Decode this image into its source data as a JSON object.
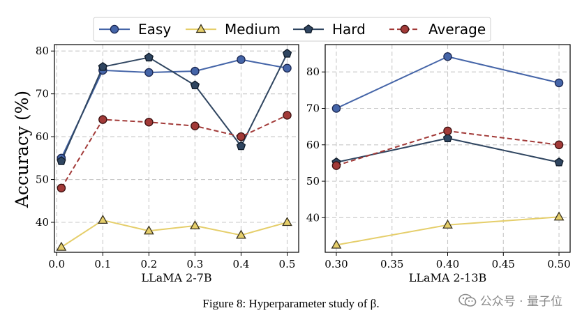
{
  "legend": {
    "items": [
      {
        "label": "Easy",
        "color": "#4565a8",
        "marker": "circle",
        "dash": false,
        "edge": "#1a2650"
      },
      {
        "label": "Medium",
        "color": "#e5ce6a",
        "marker": "triangle",
        "dash": false,
        "edge": "#3a3320"
      },
      {
        "label": "Hard",
        "color": "#2f4560",
        "marker": "pentagon",
        "dash": false,
        "edge": "#0f1a28"
      },
      {
        "label": "Average",
        "color": "#a23a38",
        "marker": "circle",
        "dash": true,
        "edge": "#3a1010"
      }
    ]
  },
  "y_axis_label": "Accuracy (%)",
  "caption": "Figure 8: Hyperparameter study of β.",
  "watermark": "公众号 · 量子位",
  "chart_data": [
    {
      "type": "line",
      "xlabel": "LLaMA 2-7B",
      "ylabel": "Accuracy (%)",
      "x": [
        0.01,
        0.1,
        0.2,
        0.3,
        0.4,
        0.5
      ],
      "xlim": [
        -0.005,
        0.525
      ],
      "ylim": [
        33,
        81.5
      ],
      "xticks": [
        0.0,
        0.1,
        0.2,
        0.3,
        0.4,
        0.5
      ],
      "xtick_labels": [
        "0.0",
        "0.1",
        "0.2",
        "0.3",
        "0.4",
        "0.5"
      ],
      "yticks": [
        40,
        50,
        60,
        70,
        80
      ],
      "grid": true,
      "series": [
        {
          "name": "Easy",
          "values": [
            55.0,
            75.5,
            75.0,
            75.3,
            78.0,
            76.0
          ]
        },
        {
          "name": "Medium",
          "values": [
            34.2,
            40.5,
            38.0,
            39.2,
            37.0,
            40.0
          ]
        },
        {
          "name": "Hard",
          "values": [
            54.3,
            76.3,
            78.5,
            72.0,
            57.8,
            79.4
          ]
        },
        {
          "name": "Average",
          "values": [
            48.0,
            64.0,
            63.4,
            62.5,
            60.0,
            65.0
          ]
        }
      ]
    },
    {
      "type": "line",
      "xlabel": "LLaMA 2-13B",
      "ylabel": "",
      "x": [
        0.3,
        0.4,
        0.5
      ],
      "xlim": [
        0.29,
        0.51
      ],
      "ylim": [
        30.5,
        87.5
      ],
      "xticks": [
        0.3,
        0.35,
        0.4,
        0.45,
        0.5
      ],
      "xtick_labels": [
        "0.30",
        "0.35",
        "0.40",
        "0.45",
        "0.50"
      ],
      "yticks": [
        40,
        50,
        60,
        70,
        80
      ],
      "grid": true,
      "series": [
        {
          "name": "Easy",
          "values": [
            70.0,
            84.2,
            77.0
          ]
        },
        {
          "name": "Medium",
          "values": [
            32.5,
            38.0,
            40.2
          ]
        },
        {
          "name": "Hard",
          "values": [
            55.2,
            61.8,
            55.2
          ]
        },
        {
          "name": "Average",
          "values": [
            54.3,
            63.8,
            60.0
          ]
        }
      ]
    }
  ]
}
